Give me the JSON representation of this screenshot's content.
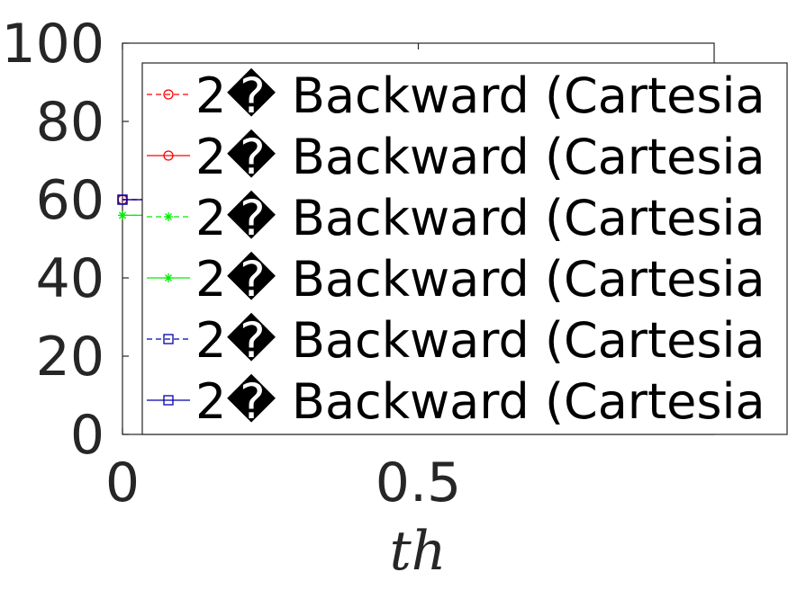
{
  "chart_data": {
    "type": "line",
    "title": "",
    "xlabel": "th",
    "ylabel": "",
    "xlim": [
      0,
      1
    ],
    "ylim": [
      0,
      100
    ],
    "x_ticks": [
      0,
      0.5
    ],
    "x_tick_labels": [
      "0",
      "0.5"
    ],
    "y_ticks": [
      0,
      20,
      40,
      60,
      80,
      100
    ],
    "y_tick_labels": [
      "0",
      "20",
      "40",
      "60",
      "80",
      "100"
    ],
    "grid": false,
    "legend": {
      "placement": "top-right",
      "box": true
    },
    "series": [
      {
        "name": "2� Backward (Cartesia",
        "color": "#ff0000",
        "line": "dashed",
        "marker": "circle",
        "x": [
          0,
          0.04
        ],
        "y": [
          60,
          60
        ]
      },
      {
        "name": "2� Backward (Cartesia",
        "color": "#ff0000",
        "line": "solid",
        "marker": "circle",
        "x": [
          0,
          0.04
        ],
        "y": [
          60,
          60
        ]
      },
      {
        "name": "2� Backward (Cartesia",
        "color": "#00ee00",
        "line": "dashed",
        "marker": "star",
        "x": [
          0,
          0.04
        ],
        "y": [
          56,
          56
        ]
      },
      {
        "name": "2� Backward (Cartesia",
        "color": "#00ee00",
        "line": "solid",
        "marker": "star",
        "x": [
          0,
          0.04
        ],
        "y": [
          56,
          56
        ]
      },
      {
        "name": "2� Backward (Cartesia",
        "color": "#0000aa",
        "line": "dashed",
        "marker": "square",
        "x": [
          0,
          0.04
        ],
        "y": [
          60,
          60
        ]
      },
      {
        "name": "2� Backward (Cartesia",
        "color": "#0000aa",
        "line": "solid",
        "marker": "square",
        "x": [
          0,
          0.04
        ],
        "y": [
          60,
          60
        ]
      }
    ]
  }
}
